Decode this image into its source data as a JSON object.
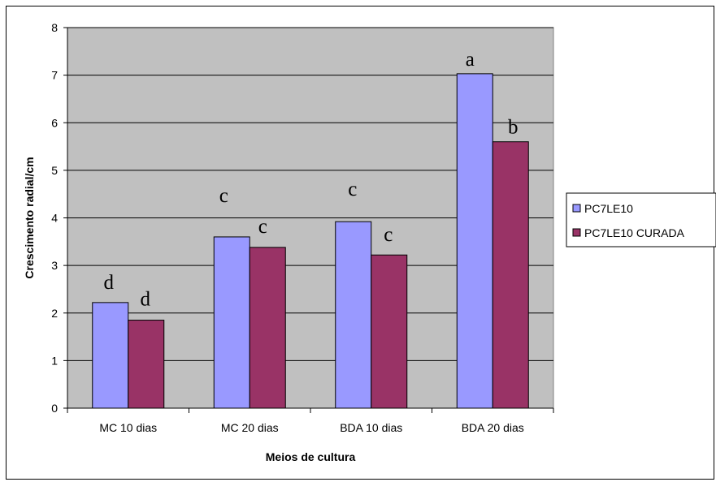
{
  "chart_data": {
    "type": "bar",
    "categories": [
      "MC 10 dias",
      "MC 20 dias",
      "BDA 10 dias",
      "BDA 20 dias"
    ],
    "series": [
      {
        "name": "PC7LE10",
        "values": [
          2.22,
          3.6,
          3.92,
          7.03
        ],
        "color": "#9999ff",
        "labels": [
          "d",
          "c",
          "c",
          "a"
        ]
      },
      {
        "name": "PC7LE10 CURADA",
        "values": [
          1.85,
          3.38,
          3.22,
          5.6
        ],
        "color": "#993366",
        "labels": [
          "d",
          "c",
          "c",
          "b"
        ]
      }
    ],
    "title": "",
    "xlabel": "Meios de cultura",
    "ylabel": "Crescimento radial/cm",
    "ylim": [
      0,
      8
    ],
    "yticks": [
      "0",
      "1",
      "2",
      "3",
      "4",
      "5",
      "6",
      "7",
      "8"
    ],
    "grid": true,
    "plot_background": "#c0c0c0",
    "legend_position": "right"
  }
}
